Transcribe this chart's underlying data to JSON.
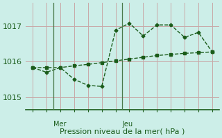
{
  "xlabel": "Pression niveau de la mer( hPa )",
  "bg_color": "#cceee8",
  "line_color": "#1a5c1a",
  "grid_color": "#c8a8a8",
  "vline_color": "#4a7a4a",
  "ylim": [
    1014.65,
    1017.65
  ],
  "yticks": [
    1015,
    1016,
    1017
  ],
  "xlim": [
    -0.5,
    13.5
  ],
  "line1_x": [
    0,
    1,
    2,
    3,
    4,
    5,
    6,
    7,
    8,
    9,
    10,
    11,
    12,
    13
  ],
  "line1_y": [
    1015.83,
    1015.83,
    1015.83,
    1015.88,
    1015.92,
    1015.97,
    1016.02,
    1016.07,
    1016.12,
    1016.17,
    1016.2,
    1016.23,
    1016.25,
    1016.27
  ],
  "line2_x": [
    0,
    1,
    2,
    3,
    4,
    5,
    6,
    7,
    8,
    9,
    10,
    11,
    12,
    13
  ],
  "line2_y": [
    1015.83,
    1015.7,
    1015.83,
    1015.5,
    1015.33,
    1015.3,
    1016.88,
    1017.08,
    1016.72,
    1017.03,
    1017.03,
    1016.68,
    1016.82,
    1016.27
  ],
  "xtick_positions": [
    1.5,
    6.5
  ],
  "xtick_labels": [
    "Mer",
    "Jeu"
  ],
  "vline_positions": [
    1.5,
    6.5
  ],
  "n_xgrid": 14,
  "xlabel_fontsize": 8,
  "ytick_fontsize": 8
}
